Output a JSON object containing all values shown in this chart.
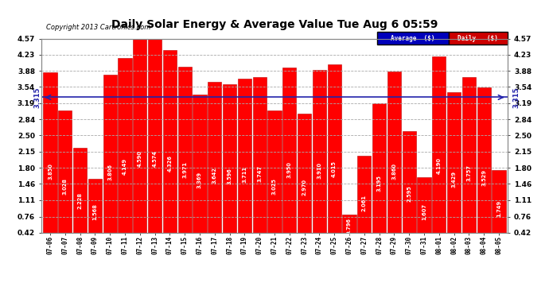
{
  "title": "Daily Solar Energy & Average Value Tue Aug 6 05:59",
  "copyright": "Copyright 2013 Cartronics.com",
  "average_value": 3.315,
  "average_label": "3.315",
  "categories": [
    "07-06",
    "07-07",
    "07-08",
    "07-09",
    "07-10",
    "07-11",
    "07-12",
    "07-13",
    "07-14",
    "07-15",
    "07-16",
    "07-17",
    "07-18",
    "07-19",
    "07-20",
    "07-21",
    "07-22",
    "07-23",
    "07-24",
    "07-25",
    "07-26",
    "07-27",
    "07-28",
    "07-29",
    "07-30",
    "07-31",
    "08-01",
    "08-02",
    "08-03",
    "08-04",
    "08-05"
  ],
  "values": [
    3.85,
    3.028,
    2.228,
    1.568,
    3.806,
    4.149,
    4.59,
    4.574,
    4.326,
    3.971,
    3.369,
    3.642,
    3.596,
    3.711,
    3.747,
    3.025,
    3.95,
    2.97,
    3.91,
    4.015,
    0.796,
    2.061,
    3.195,
    3.86,
    2.595,
    1.607,
    4.19,
    3.429,
    3.757,
    3.529,
    1.749
  ],
  "bar_color": "#ff0000",
  "bar_edge_color": "#bb0000",
  "avg_line_color": "#2222aa",
  "background_color": "#ffffff",
  "plot_bg_color": "#ffffff",
  "grid_color": "#aaaaaa",
  "ylim_min": 0.42,
  "ylim_max": 4.57,
  "yticks": [
    0.42,
    0.76,
    1.11,
    1.46,
    1.8,
    2.15,
    2.5,
    2.84,
    3.19,
    3.54,
    3.88,
    4.23,
    4.57
  ],
  "legend_avg_bg": "#0000bb",
  "legend_daily_bg": "#cc0000",
  "legend_avg_text": "Average  ($)",
  "legend_daily_text": "Daily   ($)"
}
